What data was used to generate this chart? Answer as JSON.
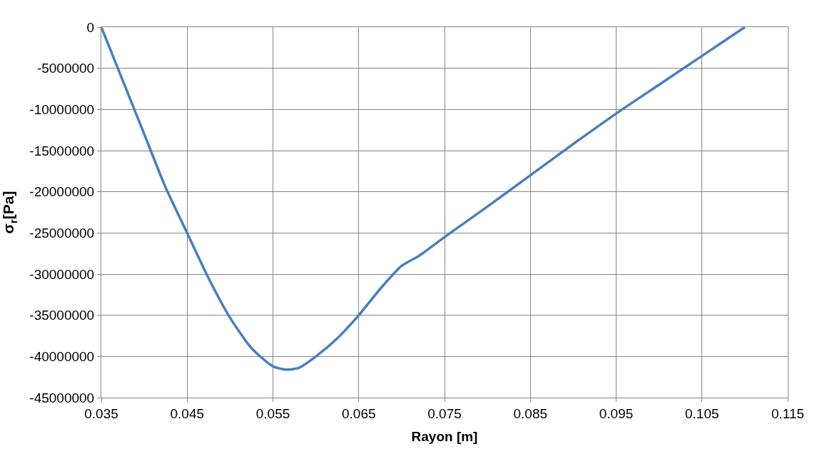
{
  "chart_data": {
    "type": "line",
    "xlabel": "Rayon [m]",
    "ylabel": "σ$_{r}$[Pa]",
    "series": [
      {
        "color": "#4a7ebb",
        "x": [
          0.035,
          0.0375,
          0.04,
          0.0425,
          0.045,
          0.0475,
          0.05,
          0.0525,
          0.055,
          0.0565,
          0.058,
          0.06,
          0.0625,
          0.065,
          0.0675,
          0.07,
          0.072,
          0.075,
          0.08,
          0.085,
          0.09,
          0.095,
          0.1,
          0.105,
          0.11
        ],
        "values": [
          0,
          -6500000,
          -13000000,
          -19500000,
          -25000000,
          -30500000,
          -35300000,
          -39000000,
          -41200000,
          -41600000,
          -41400000,
          -40000000,
          -37800000,
          -35000000,
          -31800000,
          -29000000,
          -27800000,
          -25500000,
          -21800000,
          -18000000,
          -14200000,
          -10500000,
          -7000000,
          -3500000,
          0
        ]
      }
    ],
    "xlim": [
      0.035,
      0.115
    ],
    "xticks": [
      0.035,
      0.045,
      0.055,
      0.065,
      0.075,
      0.085,
      0.095,
      0.105,
      0.115
    ],
    "ylim": [
      -45000000,
      0
    ],
    "yticks": [
      0,
      -5000000,
      -10000000,
      -15000000,
      -20000000,
      -25000000,
      -30000000,
      -35000000,
      -40000000,
      -45000000
    ],
    "grid": true,
    "marker": "none",
    "line_style": "solid"
  }
}
